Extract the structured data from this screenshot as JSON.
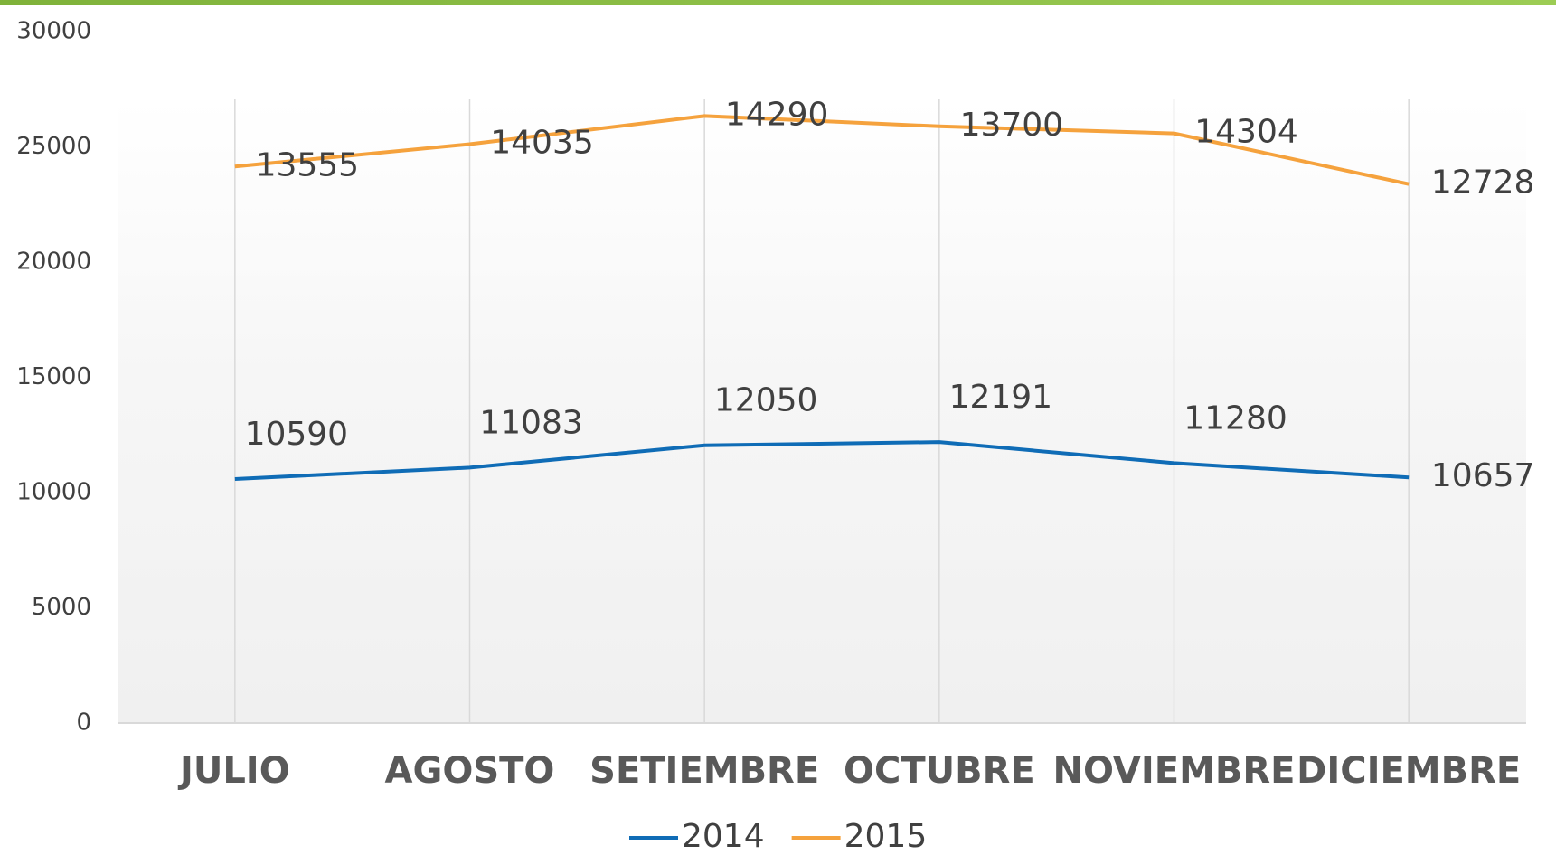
{
  "chart_data": {
    "type": "line",
    "stacked": true,
    "categories": [
      "JULIO",
      "AGOSTO",
      "SETIEMBRE",
      "OCTUBRE",
      "NOVIEMBRE",
      "DICIEMBRE"
    ],
    "series": [
      {
        "name": "2014",
        "color": "#0f6cb6",
        "values": [
          10590,
          11083,
          12050,
          12191,
          11280,
          10657
        ]
      },
      {
        "name": "2015",
        "color": "#f5a23d",
        "values": [
          13555,
          14035,
          14290,
          13700,
          14304,
          12728
        ]
      }
    ],
    "ylim": [
      0,
      30000
    ],
    "yticks": [
      0,
      5000,
      10000,
      15000,
      20000,
      25000,
      30000
    ],
    "legend": "bottom"
  }
}
